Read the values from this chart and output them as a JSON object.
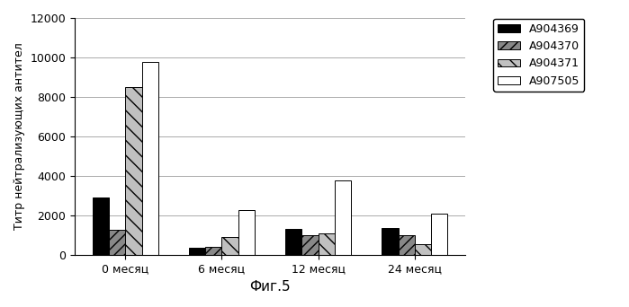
{
  "categories": [
    "0 месяц",
    "6 месяц",
    "12 месяц",
    "24 месяц"
  ],
  "series": {
    "A904369": [
      2900,
      350,
      1300,
      1350
    ],
    "A904370": [
      1250,
      380,
      1000,
      1000
    ],
    "A904371": [
      8500,
      900,
      1100,
      550
    ],
    "A907505": [
      9750,
      2250,
      3750,
      2100
    ]
  },
  "ylabel": "Титр нейтрализующих антител",
  "xlabel": "Фиг.5",
  "ylim": [
    0,
    12000
  ],
  "yticks": [
    0,
    2000,
    4000,
    6000,
    8000,
    10000,
    12000
  ],
  "bar_colors": [
    "#000000",
    "#888888",
    "#c0c0c0",
    "#ffffff"
  ],
  "bar_hatches": [
    "",
    "///",
    "\\\\",
    ""
  ],
  "legend_labels": [
    "A904369",
    "A904370",
    "A904371",
    "A907505"
  ],
  "background_color": "#ffffff"
}
